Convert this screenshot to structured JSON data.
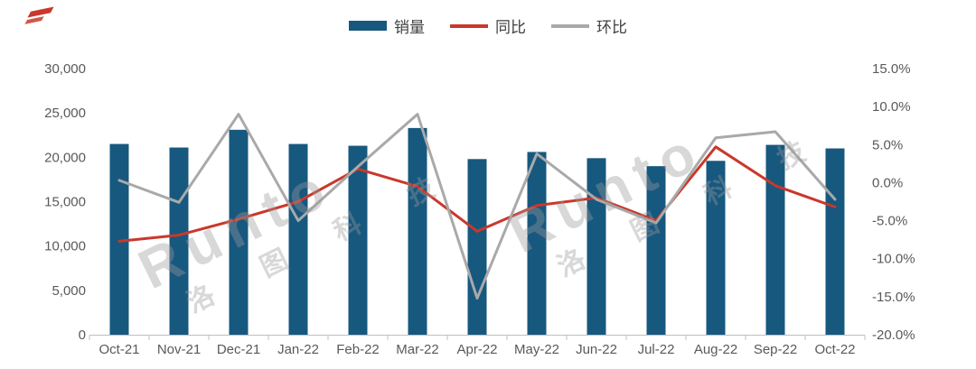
{
  "brand": {
    "watermark_latin": "Runto",
    "watermark_cjk": "洛 图 科 技"
  },
  "legend": {
    "items": [
      {
        "label": "销量",
        "type": "bar",
        "color": "#17587F"
      },
      {
        "label": "同比",
        "type": "line",
        "color": "#C9382B"
      },
      {
        "label": "环比",
        "type": "line",
        "color": "#A9A9A9"
      }
    ]
  },
  "chart_data": {
    "type": "combo(bar+line)",
    "title": "",
    "categories": [
      "Oct-21",
      "Nov-21",
      "Dec-21",
      "Jan-22",
      "Feb-22",
      "Mar-22",
      "Apr-22",
      "May-22",
      "Jun-22",
      "Jul-22",
      "Aug-22",
      "Sep-22",
      "Oct-22"
    ],
    "series": [
      {
        "name": "销量",
        "kind": "bar",
        "axis": "left",
        "color": "#17587F",
        "values": [
          21500,
          21100,
          23100,
          21500,
          21300,
          23300,
          19800,
          20600,
          19900,
          19000,
          19600,
          21400,
          21000
        ]
      },
      {
        "name": "同比",
        "kind": "line",
        "axis": "right",
        "color": "#C9382B",
        "values": [
          -7.7,
          -6.9,
          -4.8,
          -2.5,
          1.8,
          -0.5,
          -6.4,
          -3.0,
          -2.0,
          -5.0,
          4.7,
          -0.4,
          -3.2
        ]
      },
      {
        "name": "环比",
        "kind": "line",
        "axis": "right",
        "color": "#A9A9A9",
        "values": [
          0.3,
          -2.6,
          9.0,
          -5.0,
          2.1,
          9.0,
          -15.2,
          3.8,
          -2.2,
          -5.3,
          5.9,
          6.7,
          -2.2
        ]
      }
    ],
    "left_axis": {
      "min": 0,
      "max": 30000,
      "tick_labels": [
        "0",
        "5,000",
        "10,000",
        "15,000",
        "20,000",
        "25,000",
        "30,000"
      ]
    },
    "right_axis": {
      "min": -20,
      "max": 15,
      "tick_labels": [
        "-20.0%",
        "-15.0%",
        "-10.0%",
        "-5.0%",
        "0.0%",
        "5.0%",
        "10.0%",
        "15.0%"
      ]
    },
    "grid": false,
    "legend_position": "top-center",
    "xlabel": "",
    "ylabel": ""
  },
  "style": {
    "axis_text_color": "#595959",
    "axis_line_color": "#BFBFBF"
  }
}
